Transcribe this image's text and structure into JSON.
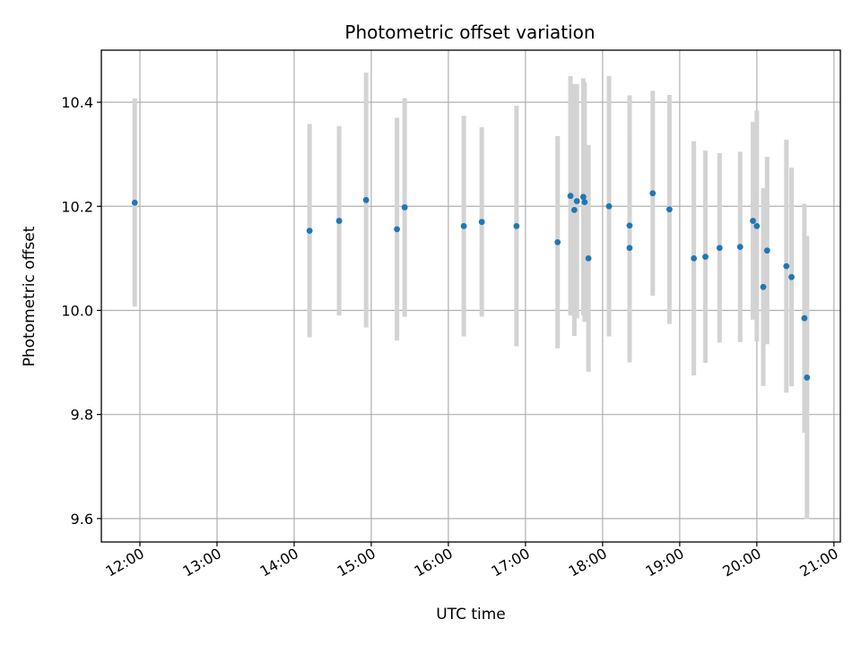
{
  "chart_data": {
    "type": "scatter",
    "title": "Photometric offset variation",
    "xlabel": "UTC time",
    "ylabel": "Photometric offset",
    "xlim": [
      "11:30",
      "21:05"
    ],
    "ylim": [
      9.555,
      10.5
    ],
    "x_ticks": [
      "12:00",
      "13:00",
      "14:00",
      "15:00",
      "16:00",
      "17:00",
      "18:00",
      "19:00",
      "20:00",
      "21:00"
    ],
    "y_ticks": [
      9.6,
      9.8,
      10.0,
      10.2,
      10.4
    ],
    "y_tick_labels": [
      "9.6",
      "9.8",
      "10.0",
      "10.2",
      "10.4"
    ],
    "grid": true,
    "colors": {
      "points": "#1f77b4",
      "errorbars": "#d3d3d3",
      "grid": "#b0b0b0"
    },
    "points": [
      {
        "x": "11:56",
        "y": 10.207,
        "yerr": 0.2
      },
      {
        "x": "14:12",
        "y": 10.153,
        "yerr": 0.205
      },
      {
        "x": "14:35",
        "y": 10.172,
        "yerr": 0.182
      },
      {
        "x": "14:56",
        "y": 10.212,
        "yerr": 0.245
      },
      {
        "x": "15:20",
        "y": 10.156,
        "yerr": 0.214
      },
      {
        "x": "15:26",
        "y": 10.198,
        "yerr": 0.21
      },
      {
        "x": "16:12",
        "y": 10.162,
        "yerr": 0.212
      },
      {
        "x": "16:26",
        "y": 10.17,
        "yerr": 0.182
      },
      {
        "x": "16:53",
        "y": 10.162,
        "yerr": 0.231
      },
      {
        "x": "17:25",
        "y": 10.131,
        "yerr": 0.204
      },
      {
        "x": "17:35",
        "y": 10.22,
        "yerr": 0.23
      },
      {
        "x": "17:38",
        "y": 10.193,
        "yerr": 0.242
      },
      {
        "x": "17:40",
        "y": 10.21,
        "yerr": 0.225
      },
      {
        "x": "17:45",
        "y": 10.218,
        "yerr": 0.228
      },
      {
        "x": "17:46",
        "y": 10.208,
        "yerr": 0.23
      },
      {
        "x": "17:49",
        "y": 10.1,
        "yerr": 0.218
      },
      {
        "x": "18:05",
        "y": 10.2,
        "yerr": 0.25
      },
      {
        "x": "18:21",
        "y": 10.163,
        "yerr": 0.25
      },
      {
        "x": "18:21",
        "y": 10.12,
        "yerr": 0.22
      },
      {
        "x": "18:39",
        "y": 10.225,
        "yerr": 0.197
      },
      {
        "x": "18:52",
        "y": 10.194,
        "yerr": 0.22
      },
      {
        "x": "19:11",
        "y": 10.1,
        "yerr": 0.225
      },
      {
        "x": "19:20",
        "y": 10.103,
        "yerr": 0.204
      },
      {
        "x": "19:31",
        "y": 10.12,
        "yerr": 0.182
      },
      {
        "x": "19:47",
        "y": 10.122,
        "yerr": 0.183
      },
      {
        "x": "19:57",
        "y": 10.172,
        "yerr": 0.19
      },
      {
        "x": "20:00",
        "y": 10.162,
        "yerr": 0.222
      },
      {
        "x": "20:05",
        "y": 10.045,
        "yerr": 0.19
      },
      {
        "x": "20:08",
        "y": 10.115,
        "yerr": 0.18
      },
      {
        "x": "20:23",
        "y": 10.085,
        "yerr": 0.243
      },
      {
        "x": "20:27",
        "y": 10.064,
        "yerr": 0.21
      },
      {
        "x": "20:37",
        "y": 9.985,
        "yerr": 0.22
      },
      {
        "x": "20:39",
        "y": 9.871,
        "yerr": 0.272
      }
    ]
  }
}
